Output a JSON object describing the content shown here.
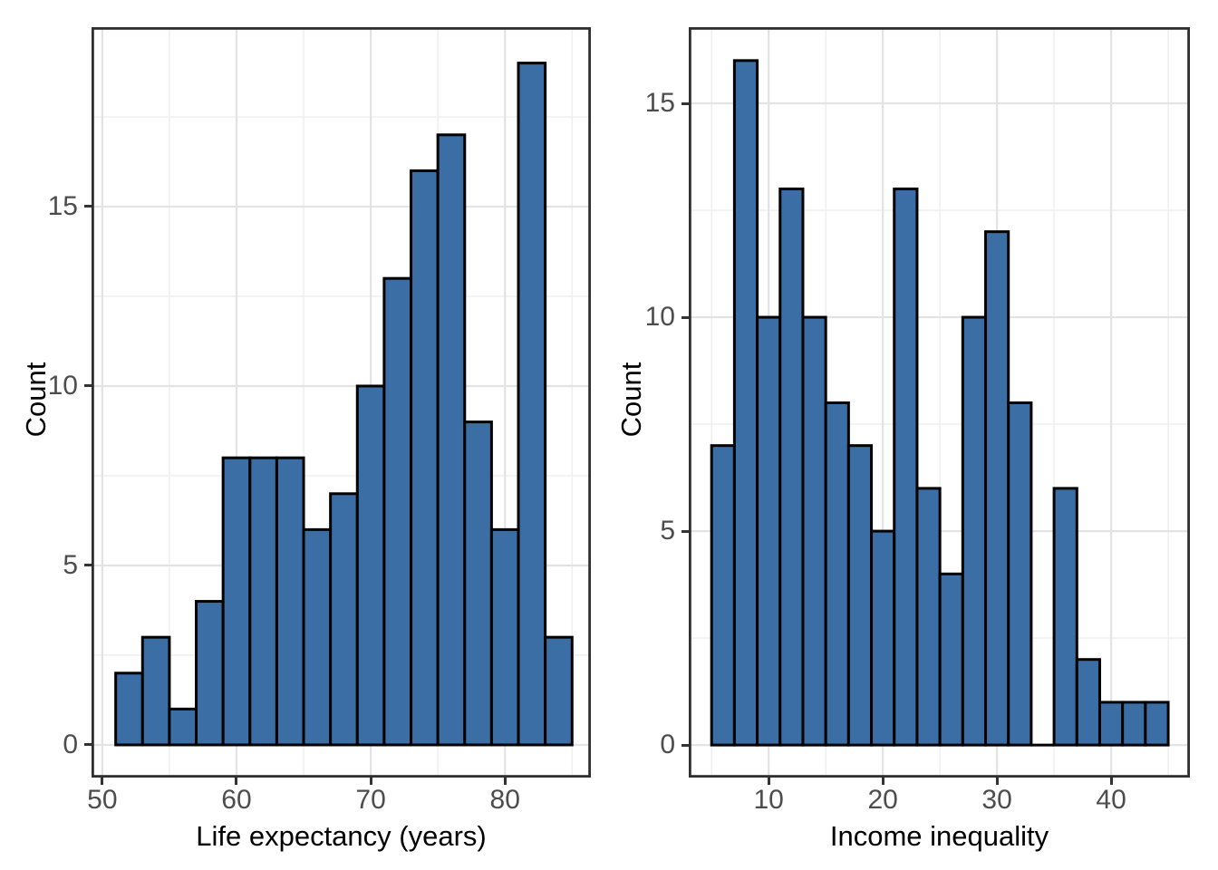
{
  "figure": {
    "background": "#ffffff",
    "colors": {
      "bar_fill": "#3a6ea5",
      "bar_edge": "#000000",
      "grid_major": "#e3e3e3",
      "grid_minor": "#f0f0f0",
      "panel_border": "#2f2f2f",
      "tick_mark": "#333333",
      "tick_label": "#4d4d4d",
      "axis_title": "#000000"
    }
  },
  "chart_data": [
    {
      "type": "bar",
      "subtype": "histogram",
      "title": "",
      "xlabel": "Life expectancy (years)",
      "ylabel": "Count",
      "bin_start": 51,
      "bin_width": 2,
      "bin_edges": [
        51,
        53,
        55,
        57,
        59,
        61,
        63,
        65,
        67,
        69,
        71,
        73,
        75,
        77,
        79,
        81,
        83,
        85
      ],
      "counts": [
        2,
        3,
        1,
        4,
        8,
        8,
        8,
        6,
        7,
        10,
        13,
        16,
        17,
        9,
        6,
        19,
        3
      ],
      "x_ticks": [
        50,
        60,
        70,
        80
      ],
      "x_minor_ticks": [
        55,
        65,
        75,
        85
      ],
      "y_ticks": [
        0,
        5,
        10,
        15
      ],
      "y_minor_ticks": [
        2.5,
        7.5,
        12.5,
        17.5
      ],
      "xlim": [
        49.2,
        86.4
      ],
      "ylim": [
        -0.91,
        20.0
      ],
      "grid": true,
      "legend": "none"
    },
    {
      "type": "bar",
      "subtype": "histogram",
      "title": "",
      "xlabel": "Income inequality",
      "ylabel": "Count",
      "bin_start": 5,
      "bin_width": 2,
      "bin_edges": [
        5,
        7,
        9,
        11,
        13,
        15,
        17,
        19,
        21,
        23,
        25,
        27,
        29,
        31,
        33,
        35,
        37,
        39,
        41,
        43,
        45
      ],
      "counts": [
        7,
        16,
        10,
        13,
        10,
        8,
        7,
        5,
        13,
        6,
        4,
        10,
        12,
        8,
        0,
        6,
        2,
        1,
        1,
        1
      ],
      "x_ticks": [
        10,
        20,
        30,
        40
      ],
      "x_minor_ticks": [
        5,
        15,
        25,
        35,
        45
      ],
      "y_ticks": [
        0,
        5,
        10,
        15
      ],
      "y_minor_ticks": [
        2.5,
        7.5,
        12.5
      ],
      "xlim": [
        3.0,
        46.9
      ],
      "ylim": [
        -0.76,
        16.78
      ],
      "grid": true,
      "legend": "none"
    }
  ]
}
